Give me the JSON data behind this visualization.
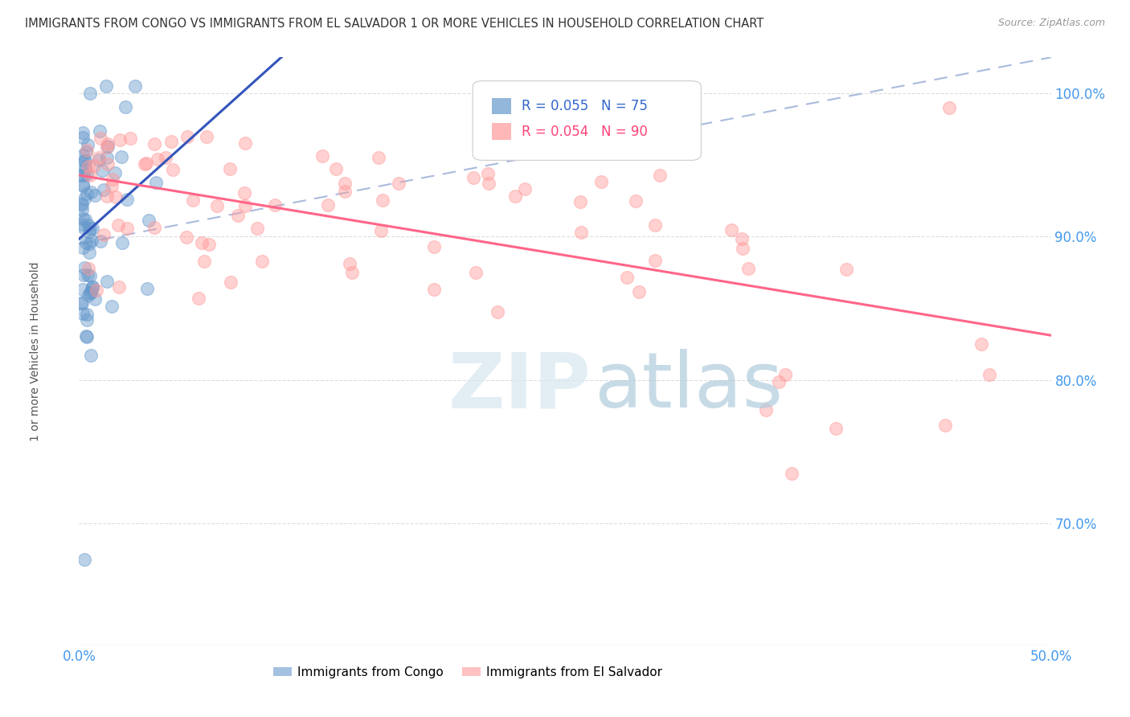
{
  "title": "IMMIGRANTS FROM CONGO VS IMMIGRANTS FROM EL SALVADOR 1 OR MORE VEHICLES IN HOUSEHOLD CORRELATION CHART",
  "source": "Source: ZipAtlas.com",
  "ylabel": "1 or more Vehicles in Household",
  "xlim": [
    0.0,
    0.5
  ],
  "ylim": [
    0.615,
    1.025
  ],
  "yticks": [
    0.7,
    0.8,
    0.9,
    1.0
  ],
  "ytick_labels": [
    "70.0%",
    "80.0%",
    "90.0%",
    "100.0%"
  ],
  "xticks": [
    0.0,
    0.1,
    0.2,
    0.3,
    0.4,
    0.5
  ],
  "xtick_labels": [
    "0.0%",
    "",
    "",
    "",
    "",
    "50.0%"
  ],
  "congo_color": "#6699CC",
  "salvador_color": "#FF9999",
  "congo_line_color": "#3355BB",
  "salvador_line_color": "#FF6688",
  "dashed_line_color": "#AABBDD",
  "R_congo": 0.055,
  "N_congo": 75,
  "R_salvador": 0.054,
  "N_salvador": 90,
  "watermark_zip": "ZIP",
  "watermark_atlas": "atlas",
  "background_color": "#ffffff",
  "grid_color": "#DDDDDD",
  "tick_color": "#4499EE",
  "title_color": "#333333",
  "source_color": "#999999"
}
